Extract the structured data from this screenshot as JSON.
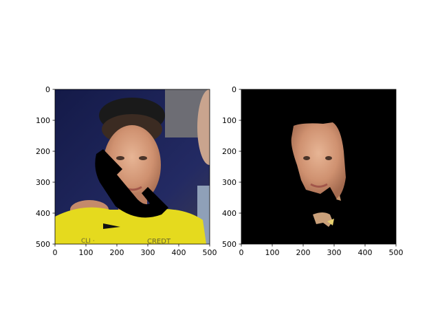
{
  "chart_data": [
    {
      "type": "image",
      "title": "",
      "xlabel": "",
      "ylabel": "",
      "xlim": [
        0,
        500
      ],
      "ylim": [
        500,
        0
      ],
      "xticks": [
        0,
        100,
        200,
        300,
        400,
        500
      ],
      "yticks": [
        0,
        100,
        200,
        300,
        400,
        500
      ],
      "content": "photo of a man in a yellow cycling jersey with a black occlusion mask over part of the face",
      "colors": {
        "background": "#1b1f4a",
        "jersey": "#e6db1f",
        "skin": "#d39a78",
        "mask": "#000000"
      }
    },
    {
      "type": "image",
      "title": "",
      "xlabel": "",
      "ylabel": "",
      "xlim": [
        0,
        500
      ],
      "ylim": [
        500,
        0
      ],
      "xticks": [
        0,
        100,
        200,
        300,
        400,
        500
      ],
      "yticks": [
        0,
        100,
        200,
        300,
        400,
        500
      ],
      "content": "segmented face region on black background",
      "colors": {
        "background": "#000000",
        "skin": "#d39a78"
      }
    }
  ]
}
